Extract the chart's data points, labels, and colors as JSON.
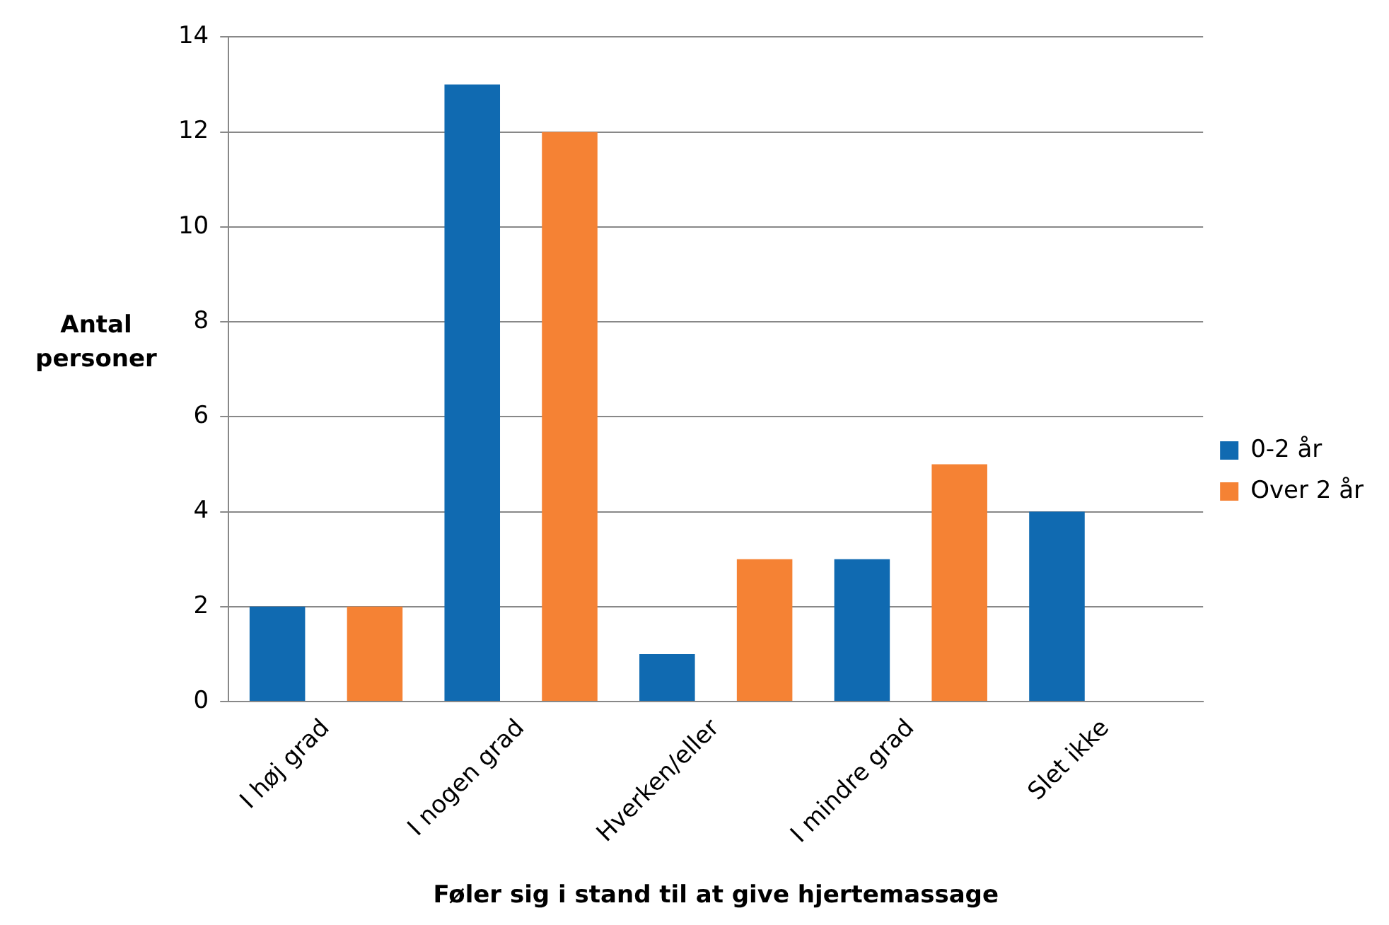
{
  "chart_data": {
    "type": "bar",
    "xlabel": "Føler sig i stand til at give hjertemassage",
    "ylabel": "Antal personer",
    "categories": [
      "I høj grad",
      "I nogen grad",
      "Hverken/eller",
      "I mindre grad",
      "Slet ikke"
    ],
    "series": [
      {
        "name": "0-2 år",
        "color": "#106ab1",
        "values": [
          2,
          13,
          1,
          3,
          4
        ]
      },
      {
        "name": "Over 2 år",
        "color": "#f58234",
        "values": [
          2,
          12,
          3,
          5,
          0
        ]
      }
    ],
    "ylim": [
      0,
      14
    ],
    "yticks": [
      0,
      2,
      4,
      6,
      8,
      10,
      12,
      14
    ],
    "grid": "y",
    "legend": "right"
  }
}
